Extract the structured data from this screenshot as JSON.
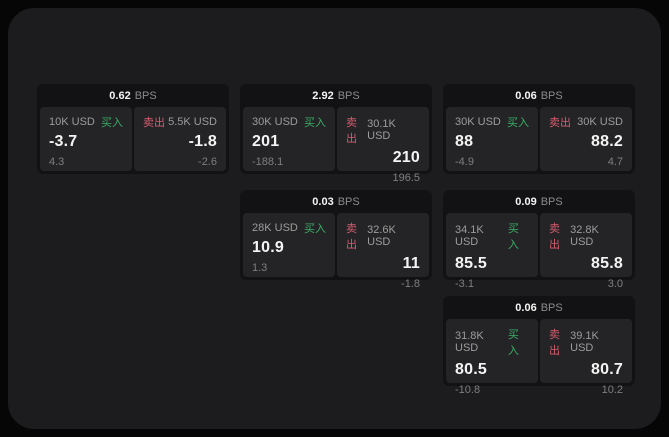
{
  "colors": {
    "outer_background": "#060606",
    "panel_background": "#1c1c1e",
    "card_background": "#121214",
    "subpanel_background": "#242426",
    "buy_green": "#3aad67",
    "sell_red": "#d35d6e",
    "text_white": "#f4f4f4",
    "text_gray": "#9c9c9c"
  },
  "cards": [
    {
      "row": 1,
      "col": 1,
      "bps": "0.62",
      "bps_unit": "BPS",
      "buy": {
        "amount": "10K USD",
        "side": "买入",
        "value": "-3.7",
        "sub": "4.3"
      },
      "sell": {
        "side": "卖出",
        "amount": "5.5K USD",
        "value": "-1.8",
        "sub": "-2.6"
      }
    },
    {
      "row": 1,
      "col": 2,
      "bps": "2.92",
      "bps_unit": "BPS",
      "buy": {
        "amount": "30K USD",
        "side": "买入",
        "value": "201",
        "sub": "-188.1"
      },
      "sell": {
        "side": "卖出",
        "amount": "30.1K USD",
        "value": "210",
        "sub": "196.5"
      }
    },
    {
      "row": 1,
      "col": 3,
      "bps": "0.06",
      "bps_unit": "BPS",
      "buy": {
        "amount": "30K USD",
        "side": "买入",
        "value": "88",
        "sub": "-4.9"
      },
      "sell": {
        "side": "卖出",
        "amount": "30K USD",
        "value": "88.2",
        "sub": "4.7"
      }
    },
    {
      "row": 2,
      "col": 2,
      "bps": "0.03",
      "bps_unit": "BPS",
      "buy": {
        "amount": "28K USD",
        "side": "买入",
        "value": "10.9",
        "sub": "1.3"
      },
      "sell": {
        "side": "卖出",
        "amount": "32.6K USD",
        "value": "11",
        "sub": "-1.8"
      }
    },
    {
      "row": 2,
      "col": 3,
      "bps": "0.09",
      "bps_unit": "BPS",
      "buy": {
        "amount": "34.1K USD",
        "side": "买入",
        "value": "85.5",
        "sub": "-3.1"
      },
      "sell": {
        "side": "卖出",
        "amount": "32.8K USD",
        "value": "85.8",
        "sub": "3.0"
      }
    },
    {
      "row": 3,
      "col": 3,
      "bps": "0.06",
      "bps_unit": "BPS",
      "buy": {
        "amount": "31.8K USD",
        "side": "买入",
        "value": "80.5",
        "sub": "-10.8"
      },
      "sell": {
        "side": "卖出",
        "amount": "39.1K USD",
        "value": "80.7",
        "sub": "10.2"
      }
    }
  ]
}
